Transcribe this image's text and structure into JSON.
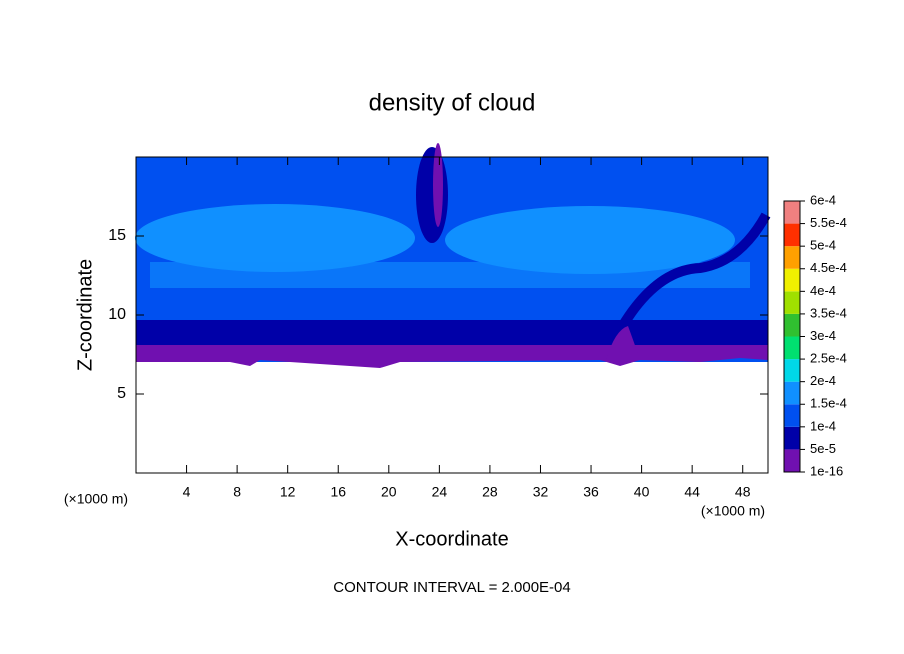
{
  "chart_data": {
    "type": "contour",
    "title": "density of cloud",
    "x_label": "X-coordinate",
    "y_label": "Z-coordinate",
    "x_unit": "(×1000 m)",
    "y_unit": "(×1000 m)",
    "annotation": "CONTOUR INTERVAL = 2.000E-04",
    "xlim": [
      0,
      50
    ],
    "xticks": [
      4,
      8,
      12,
      16,
      20,
      24,
      28,
      32,
      36,
      40,
      44,
      48
    ],
    "ylim": [
      0,
      20
    ],
    "yticks": [
      5,
      10,
      15
    ],
    "colorbar": {
      "ticks": [
        {
          "value": 1e-16,
          "label": "1e-16"
        },
        {
          "value": 5e-05,
          "label": "5e-5"
        },
        {
          "value": 0.0001,
          "label": "1e-4"
        },
        {
          "value": 0.00015,
          "label": "1.5e-4"
        },
        {
          "value": 0.0002,
          "label": "2e-4"
        },
        {
          "value": 0.00025,
          "label": "2.5e-4"
        },
        {
          "value": 0.0003,
          "label": "3e-4"
        },
        {
          "value": 0.00035,
          "label": "3.5e-4"
        },
        {
          "value": 0.0004,
          "label": "4e-4"
        },
        {
          "value": 0.00045,
          "label": "4.5e-4"
        },
        {
          "value": 0.0005,
          "label": "5e-4"
        },
        {
          "value": 0.00055,
          "label": "5.5e-4"
        },
        {
          "value": 0.0006,
          "label": "6e-4"
        }
      ],
      "colors": [
        "#7010b0",
        "#0000a8",
        "#0050f0",
        "#1090ff",
        "#00d8e8",
        "#00e070",
        "#30c030",
        "#a0e000",
        "#f0f000",
        "#ffa000",
        "#ff3000",
        "#f08080"
      ]
    }
  }
}
